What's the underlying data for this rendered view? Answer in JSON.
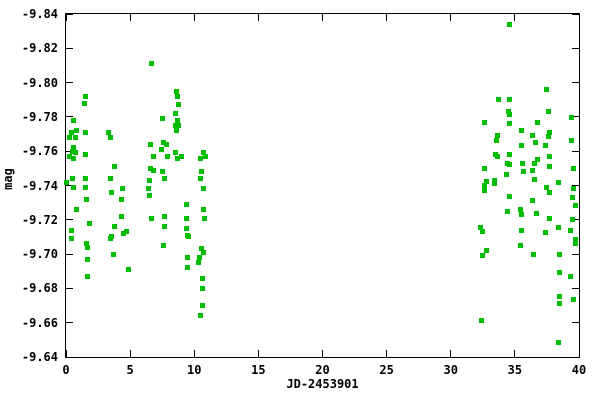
{
  "chart_data": {
    "type": "scatter",
    "title": "",
    "xlabel": "JD-2453901",
    "ylabel": "mag",
    "xlim": [
      0,
      40
    ],
    "ylim": [
      -9.84,
      -9.64
    ],
    "y_axis_inverted_top_is_min": true,
    "grid": false,
    "legend": "none",
    "marker": "filled-square",
    "marker_size_px": 5,
    "colors": {
      "marker": "#00bd00",
      "axis": "#000000",
      "background": "#ffffff"
    },
    "x_ticks": [
      0,
      5,
      10,
      15,
      20,
      25,
      30,
      35,
      40
    ],
    "x_tick_labels": [
      "0",
      "5",
      "10",
      "15",
      "20",
      "25",
      "30",
      "35",
      "40"
    ],
    "y_ticks": [
      -9.84,
      -9.82,
      -9.8,
      -9.78,
      -9.76,
      -9.74,
      -9.72,
      -9.7,
      -9.68,
      -9.66,
      -9.64
    ],
    "y_tick_labels": [
      "-9.84",
      "-9.82",
      "-9.80",
      "-9.78",
      "-9.76",
      "-9.74",
      "-9.72",
      "-9.70",
      "-9.68",
      "-9.66",
      "-9.64"
    ],
    "series": [
      {
        "name": "mag",
        "points": [
          [
            6.7,
            -9.811
          ],
          [
            1.5,
            -9.792
          ],
          [
            1.45,
            -9.788
          ],
          [
            8.65,
            -9.795
          ],
          [
            8.7,
            -9.792
          ],
          [
            8.8,
            -9.787
          ],
          [
            8.5,
            -9.782
          ],
          [
            0.6,
            -9.778
          ],
          [
            7.55,
            -9.779
          ],
          [
            8.7,
            -9.778
          ],
          [
            8.55,
            -9.775
          ],
          [
            8.8,
            -9.775
          ],
          [
            8.65,
            -9.772
          ],
          [
            0.45,
            -9.771
          ],
          [
            0.8,
            -9.772
          ],
          [
            1.5,
            -9.771
          ],
          [
            3.35,
            -9.771
          ],
          [
            3.45,
            -9.768
          ],
          [
            0.3,
            -9.768
          ],
          [
            0.75,
            -9.768
          ],
          [
            6.55,
            -9.764
          ],
          [
            7.6,
            -9.765
          ],
          [
            7.8,
            -9.764
          ],
          [
            7.45,
            -9.761
          ],
          [
            0.6,
            -9.762
          ],
          [
            0.5,
            -9.76
          ],
          [
            0.75,
            -9.759
          ],
          [
            1.55,
            -9.758
          ],
          [
            6.85,
            -9.757
          ],
          [
            8.55,
            -9.759
          ],
          [
            8.7,
            -9.756
          ],
          [
            9.0,
            -9.757
          ],
          [
            10.7,
            -9.759
          ],
          [
            10.85,
            -9.757
          ],
          [
            10.45,
            -9.756
          ],
          [
            0.3,
            -9.757
          ],
          [
            0.55,
            -9.756
          ],
          [
            7.9,
            -9.757
          ],
          [
            3.75,
            -9.751
          ],
          [
            6.6,
            -9.75
          ],
          [
            6.8,
            -9.749
          ],
          [
            7.55,
            -9.748
          ],
          [
            10.55,
            -9.748
          ],
          [
            3.5,
            -9.744
          ],
          [
            0.5,
            -9.744
          ],
          [
            0.05,
            -9.742
          ],
          [
            1.5,
            -9.744
          ],
          [
            7.7,
            -9.744
          ],
          [
            6.5,
            -9.743
          ],
          [
            10.45,
            -9.744
          ],
          [
            0.55,
            -9.739
          ],
          [
            1.55,
            -9.739
          ],
          [
            6.45,
            -9.738
          ],
          [
            4.4,
            -9.738
          ],
          [
            3.55,
            -9.736
          ],
          [
            10.7,
            -9.738
          ],
          [
            1.6,
            -9.732
          ],
          [
            4.3,
            -9.732
          ],
          [
            6.5,
            -9.734
          ],
          [
            9.4,
            -9.729
          ],
          [
            0.85,
            -9.726
          ],
          [
            10.7,
            -9.726
          ],
          [
            4.35,
            -9.722
          ],
          [
            6.7,
            -9.721
          ],
          [
            7.65,
            -9.722
          ],
          [
            9.4,
            -9.721
          ],
          [
            10.8,
            -9.721
          ],
          [
            1.8,
            -9.718
          ],
          [
            3.8,
            -9.716
          ],
          [
            7.7,
            -9.716
          ],
          [
            9.4,
            -9.715
          ],
          [
            0.45,
            -9.714
          ],
          [
            3.55,
            -9.71
          ],
          [
            3.45,
            -9.709
          ],
          [
            4.5,
            -9.712
          ],
          [
            4.75,
            -9.713
          ],
          [
            9.5,
            -9.711
          ],
          [
            9.55,
            -9.71
          ],
          [
            0.45,
            -9.709
          ],
          [
            1.6,
            -9.706
          ],
          [
            1.7,
            -9.704
          ],
          [
            7.6,
            -9.705
          ],
          [
            10.6,
            -9.703
          ],
          [
            10.7,
            -9.701
          ],
          [
            3.7,
            -9.7
          ],
          [
            9.5,
            -9.698
          ],
          [
            10.4,
            -9.698
          ],
          [
            1.65,
            -9.697
          ],
          [
            4.85,
            -9.691
          ],
          [
            9.5,
            -9.692
          ],
          [
            10.3,
            -9.695
          ],
          [
            1.65,
            -9.687
          ],
          [
            10.65,
            -9.686
          ],
          [
            10.65,
            -9.68
          ],
          [
            10.65,
            -9.67
          ],
          [
            10.5,
            -9.664
          ],
          [
            34.6,
            -9.834
          ],
          [
            37.5,
            -9.796
          ],
          [
            33.7,
            -9.79
          ],
          [
            34.55,
            -9.79
          ],
          [
            34.5,
            -9.783
          ],
          [
            34.6,
            -9.7815
          ],
          [
            37.6,
            -9.783
          ],
          [
            32.6,
            -9.777
          ],
          [
            34.6,
            -9.776
          ],
          [
            36.8,
            -9.777
          ],
          [
            39.4,
            -9.7795
          ],
          [
            35.5,
            -9.772
          ],
          [
            37.7,
            -9.771
          ],
          [
            36.35,
            -9.769
          ],
          [
            37.6,
            -9.7685
          ],
          [
            33.65,
            -9.769
          ],
          [
            33.6,
            -9.766
          ],
          [
            39.4,
            -9.766
          ],
          [
            35.5,
            -9.7635
          ],
          [
            36.6,
            -9.765
          ],
          [
            37.4,
            -9.7635
          ],
          [
            33.5,
            -9.758
          ],
          [
            33.65,
            -9.757
          ],
          [
            34.6,
            -9.758
          ],
          [
            37.7,
            -9.757
          ],
          [
            34.45,
            -9.753
          ],
          [
            34.55,
            -9.752
          ],
          [
            35.6,
            -9.753
          ],
          [
            36.75,
            -9.755
          ],
          [
            36.55,
            -9.753
          ],
          [
            32.6,
            -9.75
          ],
          [
            35.7,
            -9.748
          ],
          [
            36.4,
            -9.749
          ],
          [
            39.55,
            -9.75
          ],
          [
            37.7,
            -9.751
          ],
          [
            34.35,
            -9.7465
          ],
          [
            32.75,
            -9.7425
          ],
          [
            33.4,
            -9.743
          ],
          [
            36.5,
            -9.7435
          ],
          [
            38.4,
            -9.742
          ],
          [
            33.45,
            -9.741
          ],
          [
            37.5,
            -9.739
          ],
          [
            32.6,
            -9.74
          ],
          [
            32.6,
            -9.737
          ],
          [
            39.55,
            -9.738
          ],
          [
            37.7,
            -9.736
          ],
          [
            34.55,
            -9.7335
          ],
          [
            36.4,
            -9.7315
          ],
          [
            39.5,
            -9.733
          ],
          [
            39.7,
            -9.7285
          ],
          [
            34.4,
            -9.725
          ],
          [
            35.45,
            -9.726
          ],
          [
            35.5,
            -9.723
          ],
          [
            36.65,
            -9.7235
          ],
          [
            37.7,
            -9.721
          ],
          [
            39.5,
            -9.72
          ],
          [
            38.4,
            -9.7155
          ],
          [
            32.35,
            -9.7155
          ],
          [
            32.45,
            -9.713
          ],
          [
            35.5,
            -9.7135
          ],
          [
            37.35,
            -9.7125
          ],
          [
            39.3,
            -9.7135
          ],
          [
            39.7,
            -9.7085
          ],
          [
            39.75,
            -9.706
          ],
          [
            35.4,
            -9.705
          ],
          [
            32.75,
            -9.702
          ],
          [
            32.5,
            -9.699
          ],
          [
            36.45,
            -9.7
          ],
          [
            38.45,
            -9.7
          ],
          [
            38.45,
            -9.689
          ],
          [
            39.35,
            -9.687
          ],
          [
            38.45,
            -9.6755
          ],
          [
            38.5,
            -9.671
          ],
          [
            39.55,
            -9.6735
          ],
          [
            32.4,
            -9.6615
          ],
          [
            38.4,
            -9.6485
          ]
        ]
      }
    ]
  }
}
